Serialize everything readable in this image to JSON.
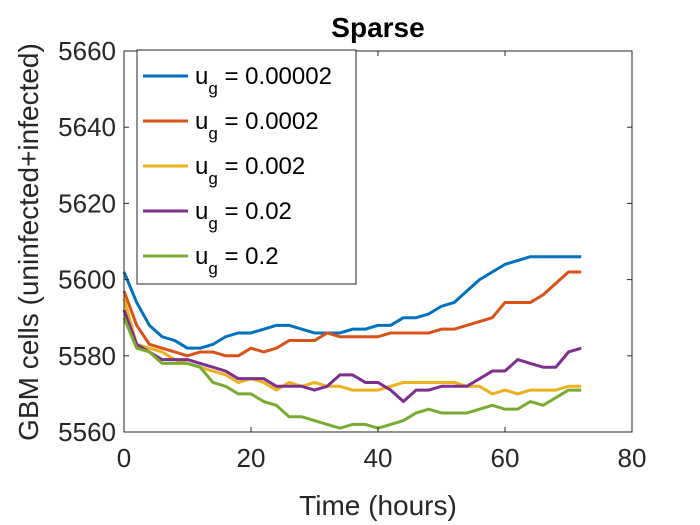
{
  "chart_data": {
    "type": "line",
    "title": "Sparse",
    "xlabel": "Time (hours)",
    "ylabel": "GBM cells (uninfected+infected)",
    "xlim": [
      0,
      80
    ],
    "ylim": [
      5560,
      5660
    ],
    "xticks": [
      0,
      20,
      40,
      60,
      80
    ],
    "yticks": [
      5560,
      5580,
      5600,
      5620,
      5640,
      5660
    ],
    "grid": false,
    "legend_placement": "top-left",
    "series": [
      {
        "name": "u_g = 0.00002",
        "legend_main": "u",
        "legend_sub": "g",
        "legend_value": " = 0.00002",
        "color": "#0072BD",
        "x": [
          0,
          2,
          4,
          6,
          8,
          10,
          12,
          14,
          16,
          18,
          20,
          22,
          24,
          26,
          28,
          30,
          32,
          34,
          36,
          38,
          40,
          42,
          44,
          46,
          48,
          50,
          52,
          54,
          56,
          58,
          60,
          62,
          64,
          66,
          68,
          70,
          72
        ],
        "y": [
          5602,
          5594,
          5588,
          5585,
          5584,
          5582,
          5582,
          5583,
          5585,
          5586,
          5586,
          5587,
          5588,
          5588,
          5587,
          5586,
          5586,
          5586,
          5587,
          5587,
          5588,
          5588,
          5590,
          5590,
          5591,
          5593,
          5594,
          5597,
          5600,
          5602,
          5604,
          5605,
          5606,
          5606,
          5606,
          5606,
          5606
        ]
      },
      {
        "name": "u_g = 0.0002",
        "legend_main": "u",
        "legend_sub": "g",
        "legend_value": " = 0.0002",
        "color": "#D95319",
        "x": [
          0,
          2,
          4,
          6,
          8,
          10,
          12,
          14,
          16,
          18,
          20,
          22,
          24,
          26,
          28,
          30,
          32,
          34,
          36,
          38,
          40,
          42,
          44,
          46,
          48,
          50,
          52,
          54,
          56,
          58,
          60,
          62,
          64,
          66,
          68,
          70,
          72
        ],
        "y": [
          5597,
          5588,
          5583,
          5582,
          5581,
          5580,
          5581,
          5581,
          5580,
          5580,
          5582,
          5581,
          5582,
          5584,
          5584,
          5584,
          5586,
          5585,
          5585,
          5585,
          5585,
          5586,
          5586,
          5586,
          5586,
          5587,
          5587,
          5588,
          5589,
          5590,
          5594,
          5594,
          5594,
          5596,
          5599,
          5602,
          5602
        ]
      },
      {
        "name": "u_g = 0.002",
        "legend_main": "u",
        "legend_sub": "g",
        "legend_value": " = 0.002",
        "color": "#EDB120",
        "x": [
          0,
          2,
          4,
          6,
          8,
          10,
          12,
          14,
          16,
          18,
          20,
          22,
          24,
          26,
          28,
          30,
          32,
          34,
          36,
          38,
          40,
          42,
          44,
          46,
          48,
          50,
          52,
          54,
          56,
          58,
          60,
          62,
          64,
          66,
          68,
          70,
          72
        ],
        "y": [
          5595,
          5583,
          5582,
          5581,
          5579,
          5578,
          5577,
          5576,
          5575,
          5573,
          5574,
          5573,
          5571,
          5573,
          5572,
          5573,
          5572,
          5572,
          5571,
          5571,
          5571,
          5572,
          5573,
          5573,
          5573,
          5573,
          5573,
          5572,
          5572,
          5570,
          5571,
          5570,
          5571,
          5571,
          5571,
          5572,
          5572
        ]
      },
      {
        "name": "u_g = 0.02",
        "legend_main": "u",
        "legend_sub": "g",
        "legend_value": " = 0.02",
        "color": "#7E2F8E",
        "x": [
          0,
          2,
          4,
          6,
          8,
          10,
          12,
          14,
          16,
          18,
          20,
          22,
          24,
          26,
          28,
          30,
          32,
          34,
          36,
          38,
          40,
          42,
          44,
          46,
          48,
          50,
          52,
          54,
          56,
          58,
          60,
          62,
          64,
          66,
          68,
          70,
          72
        ],
        "y": [
          5592,
          5583,
          5581,
          5579,
          5579,
          5579,
          5578,
          5577,
          5576,
          5574,
          5574,
          5574,
          5572,
          5572,
          5572,
          5571,
          5572,
          5575,
          5575,
          5573,
          5573,
          5571,
          5568,
          5571,
          5571,
          5572,
          5572,
          5572,
          5574,
          5576,
          5576,
          5579,
          5578,
          5577,
          5577,
          5581,
          5582
        ]
      },
      {
        "name": "u_g = 0.2",
        "legend_main": "u",
        "legend_sub": "g",
        "legend_value": " = 0.2",
        "color": "#77AC30",
        "x": [
          0,
          2,
          4,
          6,
          8,
          10,
          12,
          14,
          16,
          18,
          20,
          22,
          24,
          26,
          28,
          30,
          32,
          34,
          36,
          38,
          40,
          42,
          44,
          46,
          48,
          50,
          52,
          54,
          56,
          58,
          60,
          62,
          64,
          66,
          68,
          70,
          72
        ],
        "y": [
          5590,
          5582,
          5581,
          5578,
          5578,
          5578,
          5577,
          5573,
          5572,
          5570,
          5570,
          5568,
          5567,
          5564,
          5564,
          5563,
          5562,
          5561,
          5562,
          5562,
          5561,
          5562,
          5563,
          5565,
          5566,
          5565,
          5565,
          5565,
          5566,
          5567,
          5566,
          5566,
          5568,
          5567,
          5569,
          5571,
          5571
        ]
      }
    ]
  }
}
